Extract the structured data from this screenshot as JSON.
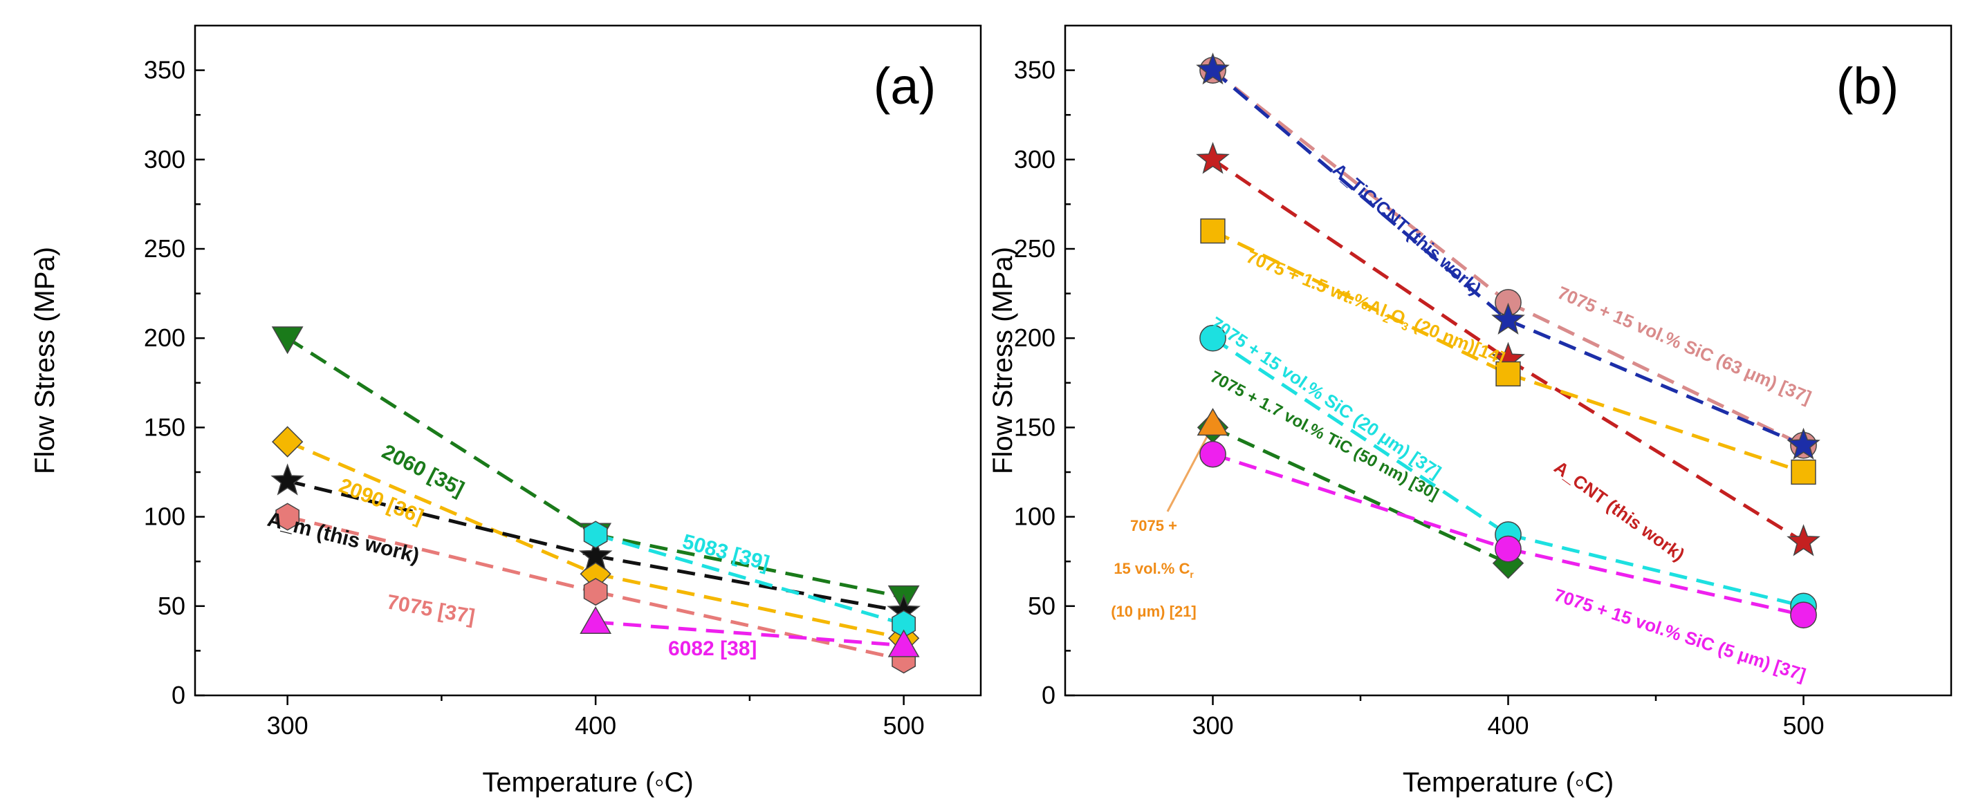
{
  "chart_data": [
    {
      "type": "line",
      "panel_label": "(a)",
      "xlabel": "Temperature (◦C)",
      "ylabel": "Flow Stress (MPa)",
      "xticks": [
        300,
        400,
        500
      ],
      "yticks": [
        0,
        50,
        100,
        150,
        200,
        250,
        300,
        350
      ],
      "xlim": [
        270,
        525
      ],
      "ylim": [
        0,
        375
      ],
      "series": [
        {
          "name": "2060 [35]",
          "color": "#1a7a1a",
          "marker": "triangle-down",
          "x": [
            300,
            400,
            500
          ],
          "y": [
            200,
            90,
            55
          ]
        },
        {
          "name": "2090 [36]",
          "color": "#f5b700",
          "marker": "diamond",
          "x": [
            300,
            400,
            500
          ],
          "y": [
            142,
            68,
            32
          ]
        },
        {
          "name": "A_m (this work)",
          "color": "#111111",
          "marker": "star",
          "x": [
            300,
            400,
            500
          ],
          "y": [
            120,
            78,
            47
          ]
        },
        {
          "name": "7075 [37]",
          "color": "#e77a78",
          "marker": "hexagon",
          "x": [
            300,
            400,
            500
          ],
          "y": [
            100,
            58,
            20
          ]
        },
        {
          "name": "5083 [39]",
          "color": "#1de0e0",
          "marker": "hexagon",
          "x": [
            400,
            500
          ],
          "y": [
            90,
            40
          ]
        },
        {
          "name": "6082 [38]",
          "color": "#ee20ee",
          "marker": "triangle-up",
          "x": [
            400,
            500
          ],
          "y": [
            41,
            28
          ]
        }
      ],
      "annotations": [
        {
          "text": "2060 [35]",
          "color": "#1a7a1a"
        },
        {
          "text": "2090 [36]",
          "color": "#f5b700"
        },
        {
          "text": "A_m (this work)",
          "color": "#111111"
        },
        {
          "text": "7075 [37]",
          "color": "#e77a78"
        },
        {
          "text": "5083 [39]",
          "color": "#1de0e0"
        },
        {
          "text": "6082 [38]",
          "color": "#ee20ee"
        }
      ]
    },
    {
      "type": "line",
      "panel_label": "(b)",
      "xlabel": "Temperature (◦C)",
      "ylabel": "Flow Stress (MPa)",
      "xticks": [
        300,
        400,
        500
      ],
      "yticks": [
        0,
        50,
        100,
        150,
        200,
        250,
        300,
        350
      ],
      "xlim": [
        250,
        550
      ],
      "ylim": [
        0,
        375
      ],
      "series": [
        {
          "name": "7075 + 15 vol.% SiC (63 μm) [37]",
          "color": "#d98b8b",
          "marker": "circle",
          "x": [
            300,
            400,
            500
          ],
          "y": [
            350,
            220,
            140
          ]
        },
        {
          "name": "A_TiC/CNT (this work)",
          "color": "#1c2ea8",
          "marker": "star",
          "x": [
            300,
            400,
            500
          ],
          "y": [
            350,
            210,
            140
          ]
        },
        {
          "name": "A_CNT (this work)",
          "color": "#c42020",
          "marker": "star",
          "x": [
            300,
            400,
            500
          ],
          "y": [
            300,
            188,
            86
          ]
        },
        {
          "name": "7075 + 1.5 wt.%Al2O3 (20 nm)[14]",
          "color": "#f5b700",
          "marker": "square",
          "x": [
            300,
            400,
            500
          ],
          "y": [
            260,
            180,
            125
          ]
        },
        {
          "name": "7075 + 15 vol.% SiC (20 μm) [37]",
          "color": "#1de0e0",
          "marker": "circle",
          "x": [
            300,
            400,
            500
          ],
          "y": [
            200,
            90,
            50
          ]
        },
        {
          "name": "7075 + 1.7 vol.% TiC (50 nm) [30]",
          "color": "#1a7a1a",
          "marker": "diamond",
          "x": [
            300,
            400
          ],
          "y": [
            150,
            74
          ]
        },
        {
          "name": "7075 + 15 vol.% SiC (5 μm) [37]",
          "color": "#ee20ee",
          "marker": "circle",
          "x": [
            300,
            400,
            500
          ],
          "y": [
            135,
            82,
            45
          ]
        },
        {
          "name": "7075 + 15 vol.% Cr (10 μm) [21]",
          "color": "#f08c18",
          "marker": "triangle-up",
          "x": [
            300
          ],
          "y": [
            152
          ]
        }
      ],
      "annotations": [
        {
          "text": "A_TiC/CNT (this work)",
          "color": "#1c2ea8"
        },
        {
          "text": "7075 + 15 vol.% SiC (63 μm) [37]",
          "color": "#d98b8b"
        },
        {
          "text": "7075 + 1.5 wt.%Al",
          "sub1": "2",
          "mid": "O",
          "sub2": "3",
          "tail": " (20 nm)[14]",
          "color": "#f5b700"
        },
        {
          "text": "7075 + 15 vol.% SiC (20 μm) [37]",
          "color": "#1de0e0"
        },
        {
          "text": "7075 + 1.7 vol.% TiC (50  nm) [30]",
          "color": "#1a7a1a"
        },
        {
          "text": "A_CNT (this work)",
          "color": "#c42020"
        },
        {
          "text": "7075 + 15 vol.% SiC (5 μm) [37]",
          "color": "#ee20ee"
        },
        {
          "line1": "7075 +",
          "line2": "15 vol.% C",
          "line2_sub": "r",
          "line3": "(10 μm) [21]",
          "color": "#f08c18"
        }
      ]
    }
  ]
}
